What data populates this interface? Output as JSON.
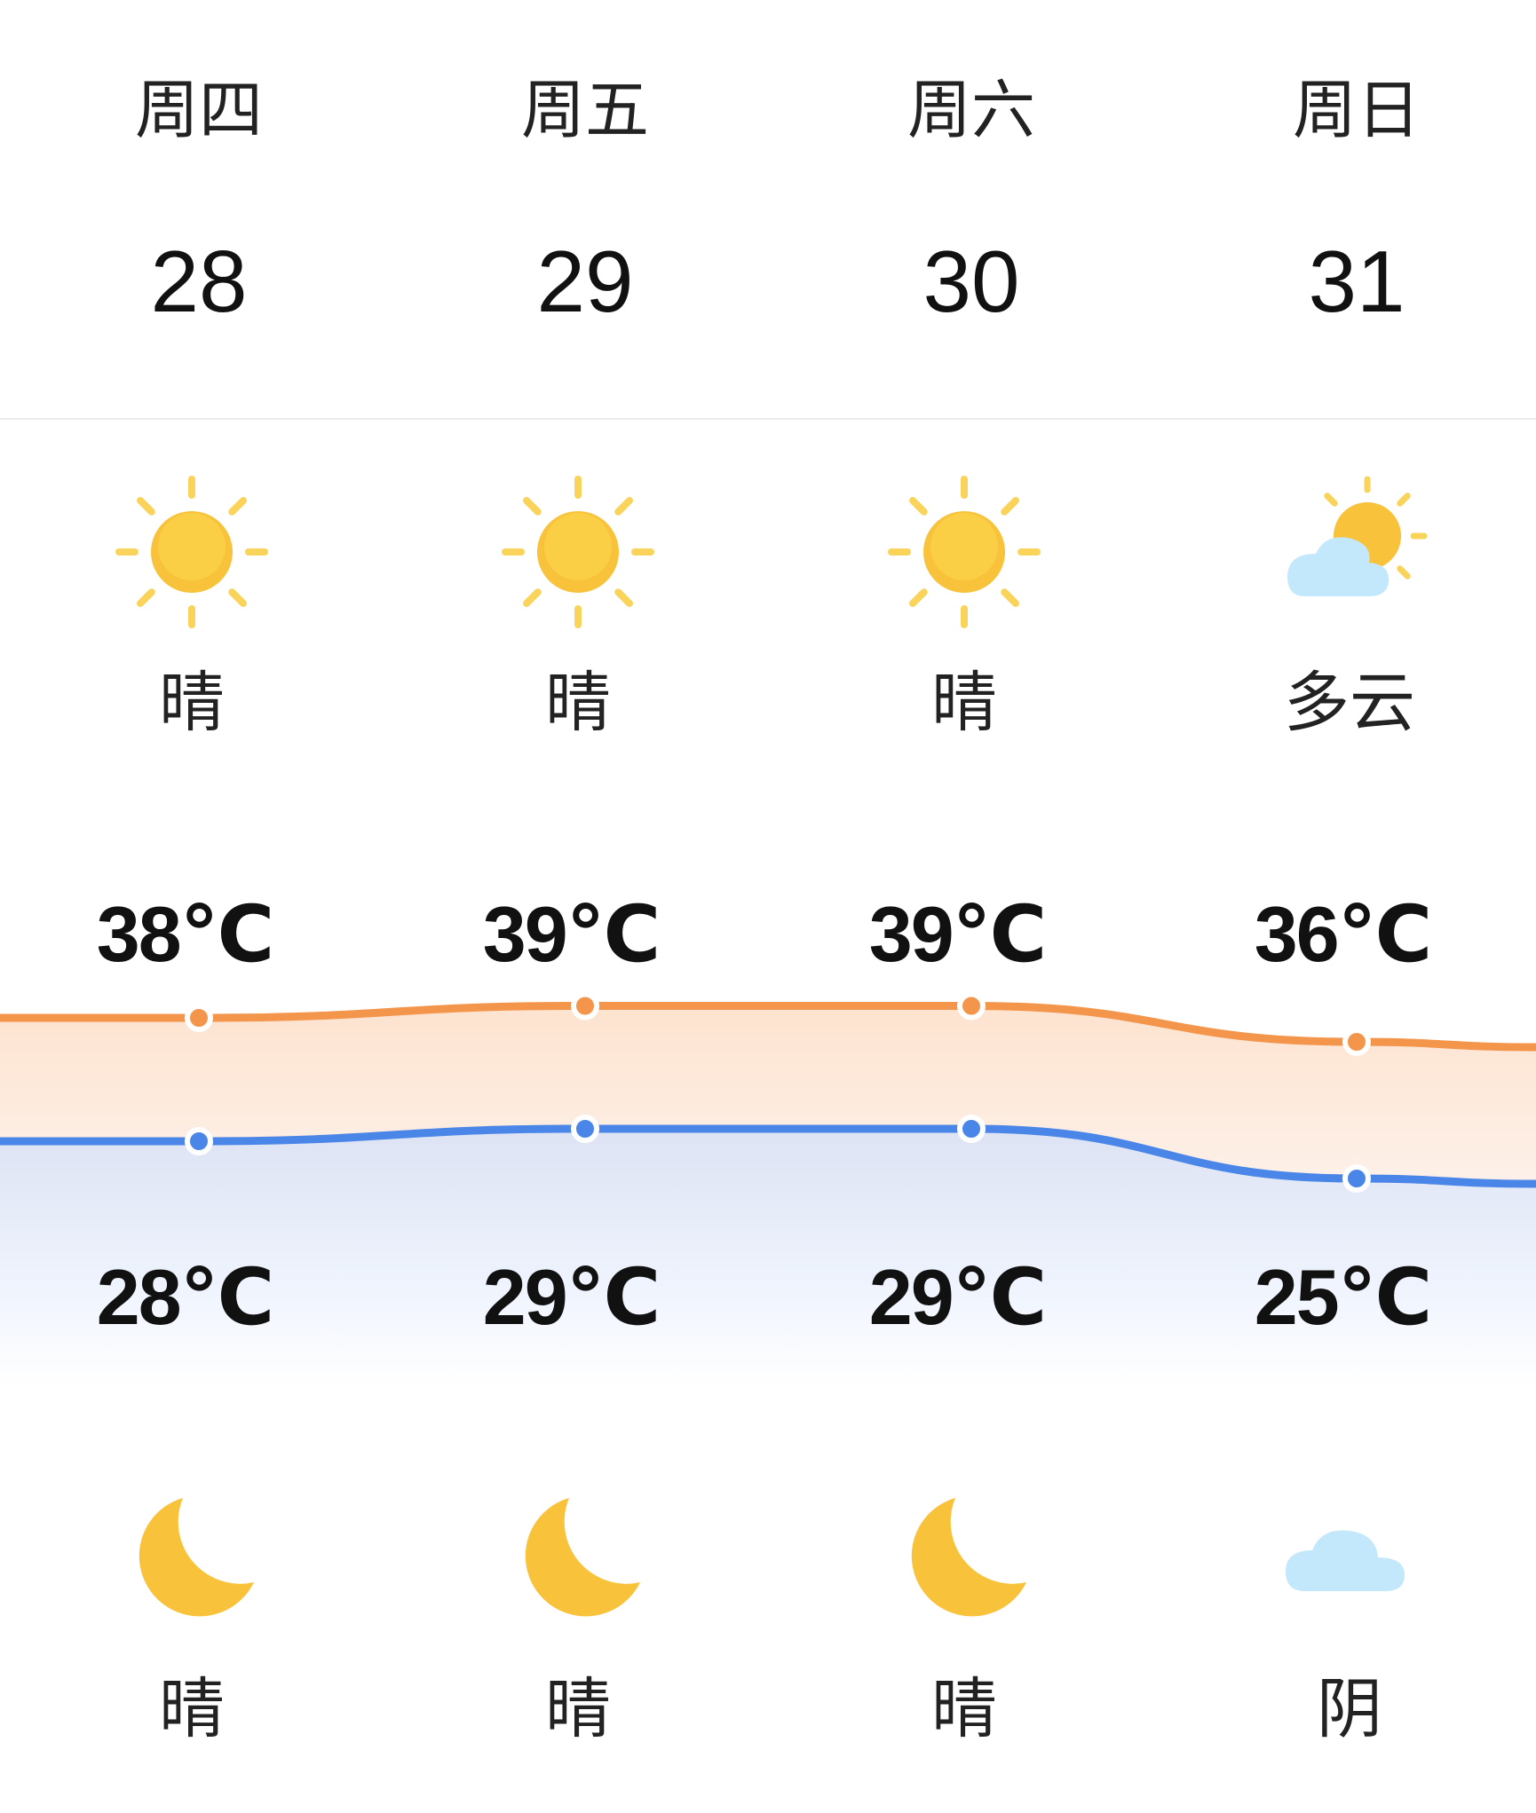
{
  "colors": {
    "high": "#f3954a",
    "low": "#4a86e8",
    "sun": "#f8c23a",
    "cloud": "#bfe6fb"
  },
  "days": [
    {
      "weekday": "周四",
      "date": "28",
      "day_icon": "sun-icon",
      "day_condition": "晴",
      "high": "38℃",
      "low": "28℃",
      "night_icon": "moon-icon",
      "night_condition": "晴"
    },
    {
      "weekday": "周五",
      "date": "29",
      "day_icon": "sun-icon",
      "day_condition": "晴",
      "high": "39℃",
      "low": "29℃",
      "night_icon": "moon-icon",
      "night_condition": "晴"
    },
    {
      "weekday": "周六",
      "date": "30",
      "day_icon": "sun-icon",
      "day_condition": "晴",
      "high": "39℃",
      "low": "29℃",
      "night_icon": "moon-icon",
      "night_condition": "晴"
    },
    {
      "weekday": "周日",
      "date": "31",
      "day_icon": "partly-cloudy-icon",
      "day_condition": "多云",
      "high": "36℃",
      "low": "25℃",
      "night_icon": "cloud-icon",
      "night_condition": "阴"
    }
  ],
  "chart_data": {
    "type": "line",
    "categories": [
      "周四",
      "周五",
      "周六",
      "周日"
    ],
    "series": [
      {
        "values": [
          38,
          39,
          39,
          36
        ]
      },
      {
        "values": [
          28,
          29,
          29,
          25
        ]
      }
    ]
  }
}
